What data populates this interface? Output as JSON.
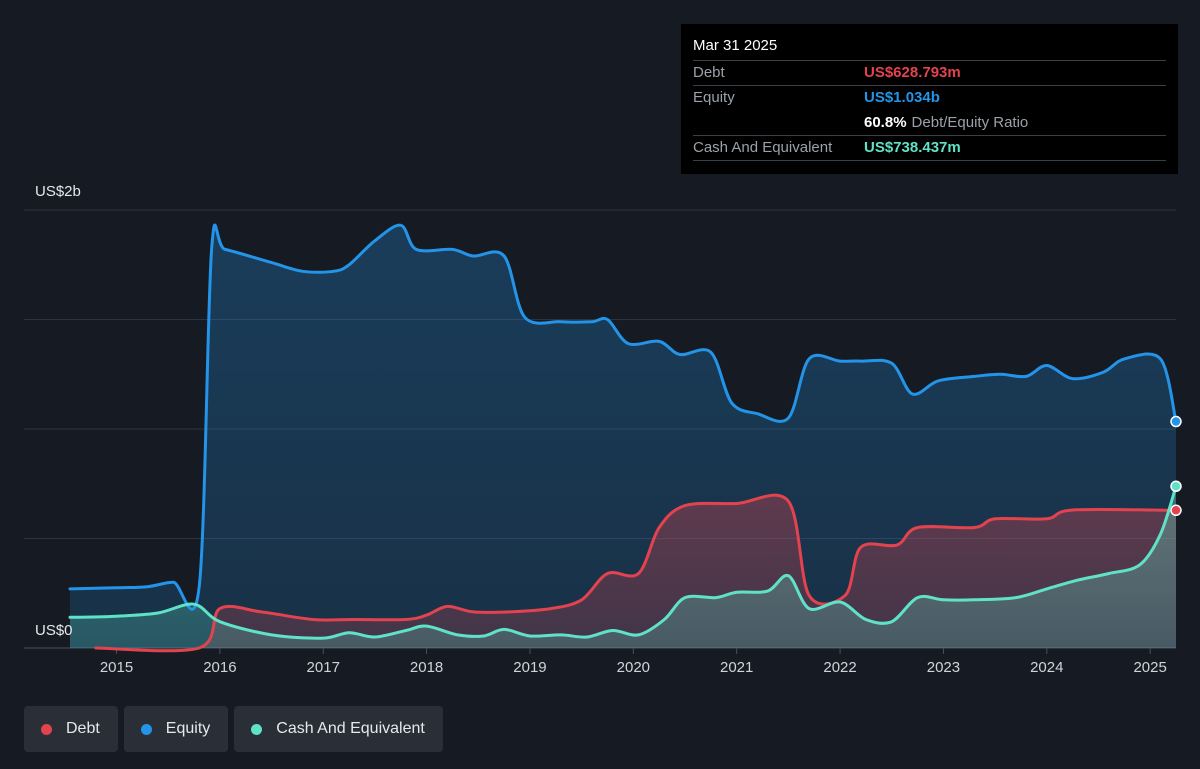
{
  "colors": {
    "debt": "#e2434e",
    "equity": "#2394e8",
    "cash": "#5fe2c8",
    "grid": "#2d333c",
    "axis_text": "#d0d4da"
  },
  "y_axis": {
    "top_label": "US$2b",
    "bottom_label": "US$0"
  },
  "tooltip": {
    "date": "Mar 31 2025",
    "debt_label": "Debt",
    "debt_value": "US$628.793m",
    "equity_label": "Equity",
    "equity_value": "US$1.034b",
    "ratio_value": "60.8%",
    "ratio_label": "Debt/Equity Ratio",
    "cash_label": "Cash And Equivalent",
    "cash_value": "US$738.437m"
  },
  "legend": {
    "debt": "Debt",
    "equity": "Equity",
    "cash": "Cash And Equivalent"
  },
  "chart_data": {
    "type": "area",
    "ylim": [
      0,
      2
    ],
    "y_unit": "US$ billions",
    "xlim": [
      2014.55,
      2025.25
    ],
    "x_ticks": [
      2015,
      2016,
      2017,
      2018,
      2019,
      2020,
      2021,
      2022,
      2023,
      2024,
      2025
    ],
    "y_ticks": [
      0,
      0.5,
      1,
      1.5,
      2
    ],
    "grid": true,
    "series": [
      {
        "name": "Equity",
        "key": "equity",
        "points": [
          [
            2014.55,
            0.27
          ],
          [
            2015.0,
            0.275
          ],
          [
            2015.3,
            0.28
          ],
          [
            2015.55,
            0.3
          ],
          [
            2015.8,
            0.28
          ],
          [
            2015.92,
            1.82
          ],
          [
            2016.05,
            1.82
          ],
          [
            2016.5,
            1.76
          ],
          [
            2016.8,
            1.72
          ],
          [
            2017.1,
            1.72
          ],
          [
            2017.25,
            1.75
          ],
          [
            2017.5,
            1.86
          ],
          [
            2017.75,
            1.93
          ],
          [
            2017.9,
            1.82
          ],
          [
            2018.25,
            1.82
          ],
          [
            2018.45,
            1.79
          ],
          [
            2018.75,
            1.79
          ],
          [
            2018.95,
            1.51
          ],
          [
            2019.3,
            1.49
          ],
          [
            2019.6,
            1.49
          ],
          [
            2019.75,
            1.5
          ],
          [
            2019.95,
            1.39
          ],
          [
            2020.25,
            1.4
          ],
          [
            2020.45,
            1.34
          ],
          [
            2020.75,
            1.35
          ],
          [
            2020.95,
            1.12
          ],
          [
            2021.2,
            1.07
          ],
          [
            2021.5,
            1.05
          ],
          [
            2021.7,
            1.32
          ],
          [
            2022.0,
            1.31
          ],
          [
            2022.2,
            1.31
          ],
          [
            2022.5,
            1.3
          ],
          [
            2022.7,
            1.16
          ],
          [
            2022.95,
            1.22
          ],
          [
            2023.3,
            1.24
          ],
          [
            2023.55,
            1.25
          ],
          [
            2023.8,
            1.24
          ],
          [
            2024.0,
            1.29
          ],
          [
            2024.25,
            1.23
          ],
          [
            2024.55,
            1.26
          ],
          [
            2024.75,
            1.32
          ],
          [
            2025.1,
            1.32
          ],
          [
            2025.25,
            1.034
          ]
        ]
      },
      {
        "name": "Debt",
        "key": "debt",
        "points": [
          [
            2014.8,
            0.0
          ],
          [
            2015.8,
            0.0
          ],
          [
            2016.0,
            0.18
          ],
          [
            2016.4,
            0.165
          ],
          [
            2016.9,
            0.13
          ],
          [
            2017.3,
            0.13
          ],
          [
            2017.8,
            0.13
          ],
          [
            2018.0,
            0.15
          ],
          [
            2018.2,
            0.19
          ],
          [
            2018.45,
            0.165
          ],
          [
            2018.8,
            0.165
          ],
          [
            2019.2,
            0.18
          ],
          [
            2019.5,
            0.22
          ],
          [
            2019.75,
            0.34
          ],
          [
            2020.05,
            0.34
          ],
          [
            2020.25,
            0.55
          ],
          [
            2020.5,
            0.65
          ],
          [
            2021.0,
            0.66
          ],
          [
            2021.5,
            0.67
          ],
          [
            2021.7,
            0.24
          ],
          [
            2022.05,
            0.24
          ],
          [
            2022.2,
            0.46
          ],
          [
            2022.55,
            0.47
          ],
          [
            2022.75,
            0.55
          ],
          [
            2023.3,
            0.55
          ],
          [
            2023.5,
            0.59
          ],
          [
            2024.0,
            0.59
          ],
          [
            2024.25,
            0.63
          ],
          [
            2025.25,
            0.628793
          ]
        ]
      },
      {
        "name": "Cash And Equivalent",
        "key": "cash",
        "points": [
          [
            2014.55,
            0.14
          ],
          [
            2015.0,
            0.145
          ],
          [
            2015.4,
            0.16
          ],
          [
            2015.75,
            0.2
          ],
          [
            2016.0,
            0.12
          ],
          [
            2016.5,
            0.06
          ],
          [
            2017.0,
            0.045
          ],
          [
            2017.25,
            0.07
          ],
          [
            2017.5,
            0.05
          ],
          [
            2017.8,
            0.08
          ],
          [
            2018.0,
            0.1
          ],
          [
            2018.3,
            0.06
          ],
          [
            2018.55,
            0.055
          ],
          [
            2018.75,
            0.085
          ],
          [
            2019.0,
            0.055
          ],
          [
            2019.3,
            0.06
          ],
          [
            2019.55,
            0.05
          ],
          [
            2019.8,
            0.08
          ],
          [
            2020.05,
            0.06
          ],
          [
            2020.3,
            0.13
          ],
          [
            2020.5,
            0.23
          ],
          [
            2020.8,
            0.23
          ],
          [
            2021.0,
            0.255
          ],
          [
            2021.3,
            0.26
          ],
          [
            2021.5,
            0.33
          ],
          [
            2021.7,
            0.18
          ],
          [
            2022.0,
            0.21
          ],
          [
            2022.25,
            0.13
          ],
          [
            2022.5,
            0.12
          ],
          [
            2022.75,
            0.23
          ],
          [
            2023.0,
            0.22
          ],
          [
            2023.3,
            0.22
          ],
          [
            2023.7,
            0.23
          ],
          [
            2024.0,
            0.27
          ],
          [
            2024.3,
            0.31
          ],
          [
            2024.6,
            0.34
          ],
          [
            2024.9,
            0.38
          ],
          [
            2025.1,
            0.52
          ],
          [
            2025.25,
            0.738437
          ]
        ]
      }
    ]
  }
}
